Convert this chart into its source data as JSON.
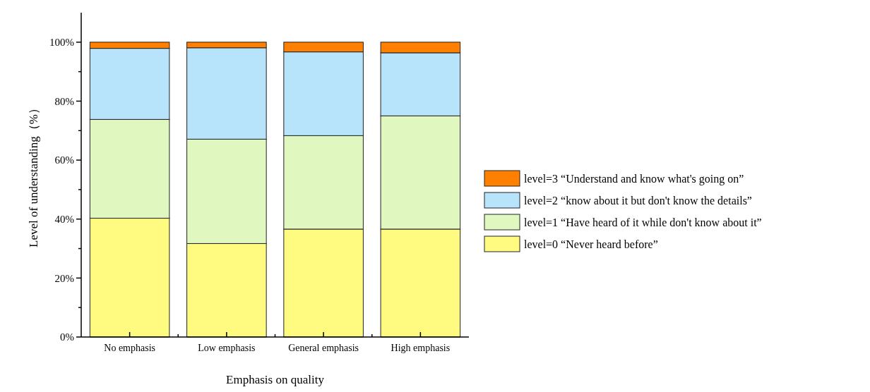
{
  "chart_data": {
    "type": "bar",
    "stacked": true,
    "xlabel": "Emphasis on quality",
    "ylabel": "Level of understanding（%）",
    "categories": [
      "No emphasis",
      "Low emphasis",
      "General emphasis",
      "High emphasis"
    ],
    "series": [
      {
        "name": "level=0 “Never heard before”",
        "color": "#fffb80",
        "values": [
          40.3,
          31.7,
          36.6,
          36.6
        ]
      },
      {
        "name": "level=1 “Have heard of it while don't know about it”",
        "color": "#e0f7c0",
        "values": [
          33.5,
          35.4,
          31.7,
          38.4
        ]
      },
      {
        "name": "level=2 “know about it but don't know the details”",
        "color": "#b7e3fb",
        "values": [
          24.1,
          31.0,
          28.4,
          21.4
        ]
      },
      {
        "name": "level=3 “Understand and know what's going on”",
        "color": "#ff8000",
        "values": [
          2.1,
          1.9,
          3.3,
          3.6
        ]
      }
    ],
    "ylim": [
      0,
      110
    ],
    "yticks": [
      {
        "value": 0,
        "label": "0%"
      },
      {
        "value": 10,
        "label": null
      },
      {
        "value": 20,
        "label": "20%"
      },
      {
        "value": 30,
        "label": null
      },
      {
        "value": 40,
        "label": "40%"
      },
      {
        "value": 50,
        "label": null
      },
      {
        "value": 60,
        "label": "60%"
      },
      {
        "value": 70,
        "label": null
      },
      {
        "value": 80,
        "label": "80%"
      },
      {
        "value": 90,
        "label": null
      },
      {
        "value": 100,
        "label": "100%"
      }
    ],
    "grid": false,
    "legend": "right"
  }
}
